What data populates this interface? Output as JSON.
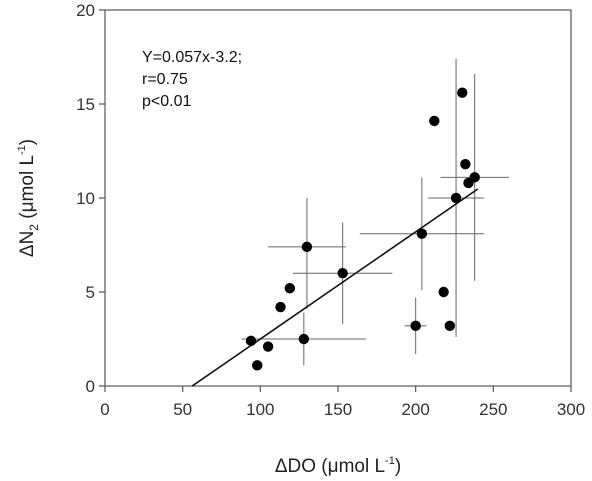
{
  "chart_data": {
    "type": "scatter",
    "title": "",
    "xlabel": "ΔDO (μmol L⁻¹)",
    "ylabel": "ΔN₂ (μmol L⁻¹)",
    "xlim": [
      0,
      300
    ],
    "ylim": [
      0,
      20
    ],
    "xticks": [
      "0",
      "50",
      "100",
      "150",
      "200",
      "250",
      "300"
    ],
    "yticks": [
      "0",
      "5",
      "10",
      "15",
      "20"
    ],
    "grid": false,
    "legend": "none",
    "annotation": [
      "Y=0.057x-3.2;",
      "r=0.75",
      "p<0.01"
    ],
    "regression": {
      "slope": 0.057,
      "intercept": -3.2,
      "x_range": [
        56,
        240
      ]
    },
    "points": [
      {
        "x": 94,
        "y": 2.4
      },
      {
        "x": 98,
        "y": 1.1
      },
      {
        "x": 105,
        "y": 2.1
      },
      {
        "x": 113,
        "y": 4.2
      },
      {
        "x": 119,
        "y": 5.2
      },
      {
        "x": 128,
        "y": 2.5,
        "xerr": 40,
        "yerr_up": 1.4,
        "yerr_down": 1.4
      },
      {
        "x": 130,
        "y": 7.4,
        "xerr": 25,
        "yerr_up": 2.6,
        "yerr_down": 3.3
      },
      {
        "x": 153,
        "y": 6.0,
        "xerr": 32,
        "yerr_up": 2.7,
        "yerr_down": 2.7
      },
      {
        "x": 200,
        "y": 3.2,
        "xerr": 7,
        "yerr_up": 1.5,
        "yerr_down": 1.5
      },
      {
        "x": 204,
        "y": 8.1,
        "xerr": 40,
        "yerr_up": 3.0,
        "yerr_down": 3.0
      },
      {
        "x": 212,
        "y": 14.1
      },
      {
        "x": 218,
        "y": 5.0
      },
      {
        "x": 222,
        "y": 3.2
      },
      {
        "x": 226,
        "y": 10.0,
        "xerr": 18,
        "yerr_up": 7.4,
        "yerr_down": 7.4
      },
      {
        "x": 230,
        "y": 15.6
      },
      {
        "x": 232,
        "y": 11.8
      },
      {
        "x": 234,
        "y": 10.8
      },
      {
        "x": 238,
        "y": 11.1,
        "xerr": 22,
        "yerr_up": 5.5,
        "yerr_down": 5.5
      }
    ]
  }
}
